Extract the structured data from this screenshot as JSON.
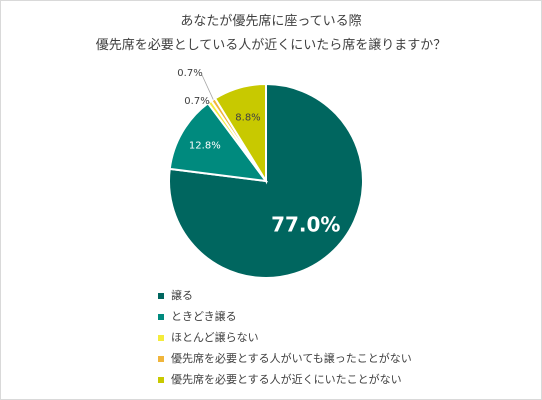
{
  "chart_data": {
    "type": "pie",
    "title": [
      "あなたが優先席に座っている際",
      "優先席を必要としている人が近くにいたら席を譲りますか？"
    ],
    "categories": [
      "譲る",
      "ときどき譲る",
      "ほとんど譲らない",
      "優先席を必要とする人がいても譲ったことがない",
      "優先席を必要とする人が近くにいたことがない"
    ],
    "values": [
      77.0,
      12.8,
      0.7,
      0.7,
      8.8
    ],
    "labels": [
      "77.0%",
      "12.8%",
      "0.7%",
      "0.7%",
      "8.8%"
    ],
    "colors": [
      "#00665f",
      "#008a7e",
      "#f4ec3b",
      "#f0b53b",
      "#c8c900"
    ],
    "legend_position": "bottom-left"
  }
}
